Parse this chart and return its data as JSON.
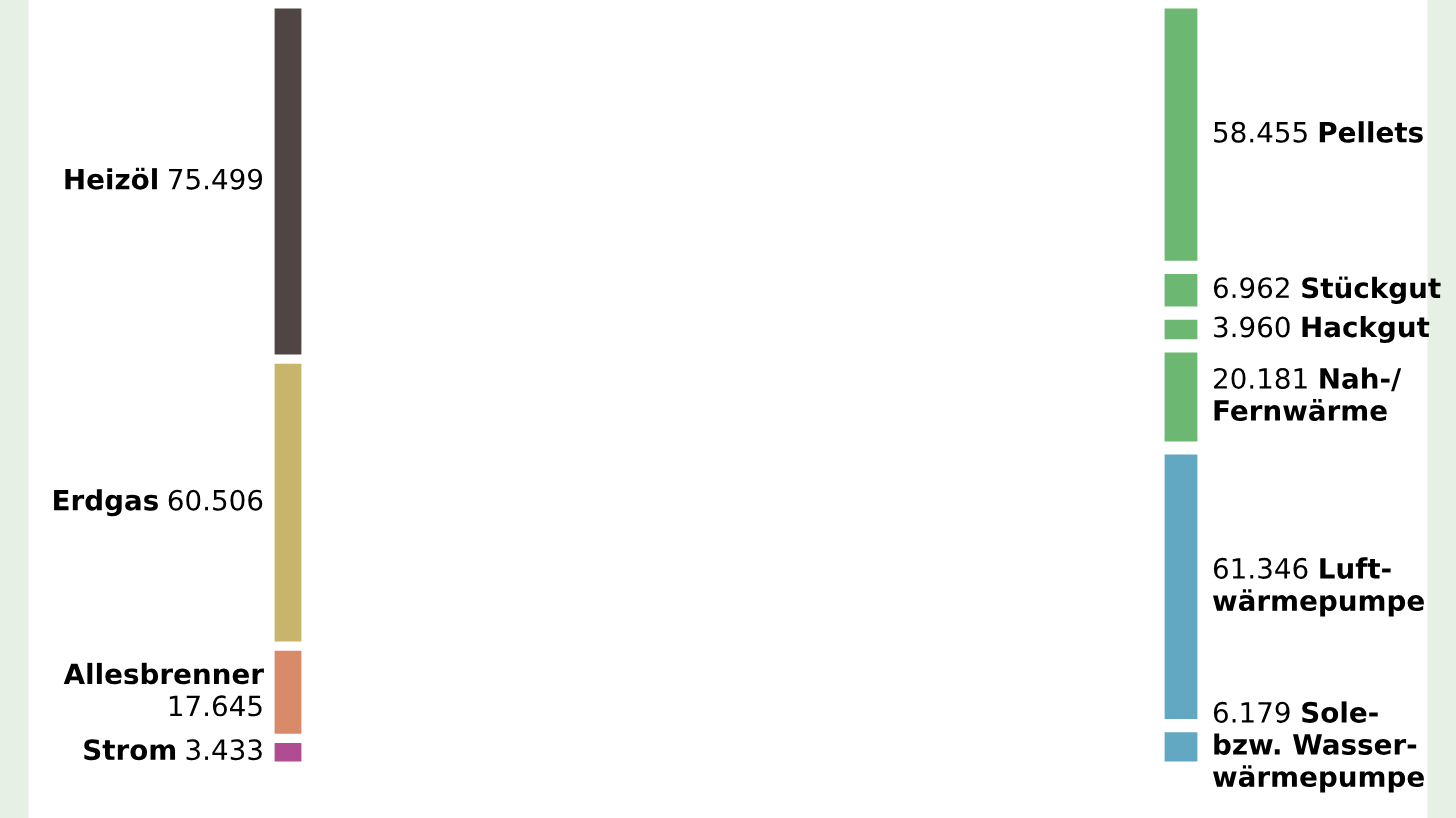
{
  "chart_data": {
    "type": "other",
    "categories": [
      "Heizöl",
      "Erdgas",
      "Allesbrenner",
      "Strom",
      "Pellets",
      "Stückgut",
      "Hackgut",
      "Nah-/\nFernwärme",
      "Luft-\nwärmepumpe",
      "Sole-\nbzw. Wasser-\nwärmepumpe"
    ],
    "series": [
      {
        "values": [
          75499,
          60506,
          17645,
          3433,
          null,
          null,
          null,
          null,
          null,
          null
        ],
        "value_labels": [
          "75.499",
          "60.506",
          "17.645",
          "3.433",
          null,
          null,
          null,
          null,
          null,
          null
        ],
        "colors": [
          "#4f4545",
          "#c8b56c",
          "#d98a68",
          "#b04c92",
          null,
          null,
          null,
          null,
          null,
          null
        ]
      },
      {
        "values": [
          null,
          null,
          null,
          null,
          58455,
          6962,
          3960,
          20181,
          61346,
          6179
        ],
        "value_labels": [
          null,
          null,
          null,
          null,
          "58.455",
          "6.962",
          "3.960",
          "20.181",
          "61.346",
          "6.179"
        ],
        "colors": [
          null,
          null,
          null,
          null,
          "#6cb872",
          "#6cb872",
          "#6cb872",
          "#6cb872",
          "#62a8c2",
          "#62a8c2"
        ]
      }
    ]
  }
}
